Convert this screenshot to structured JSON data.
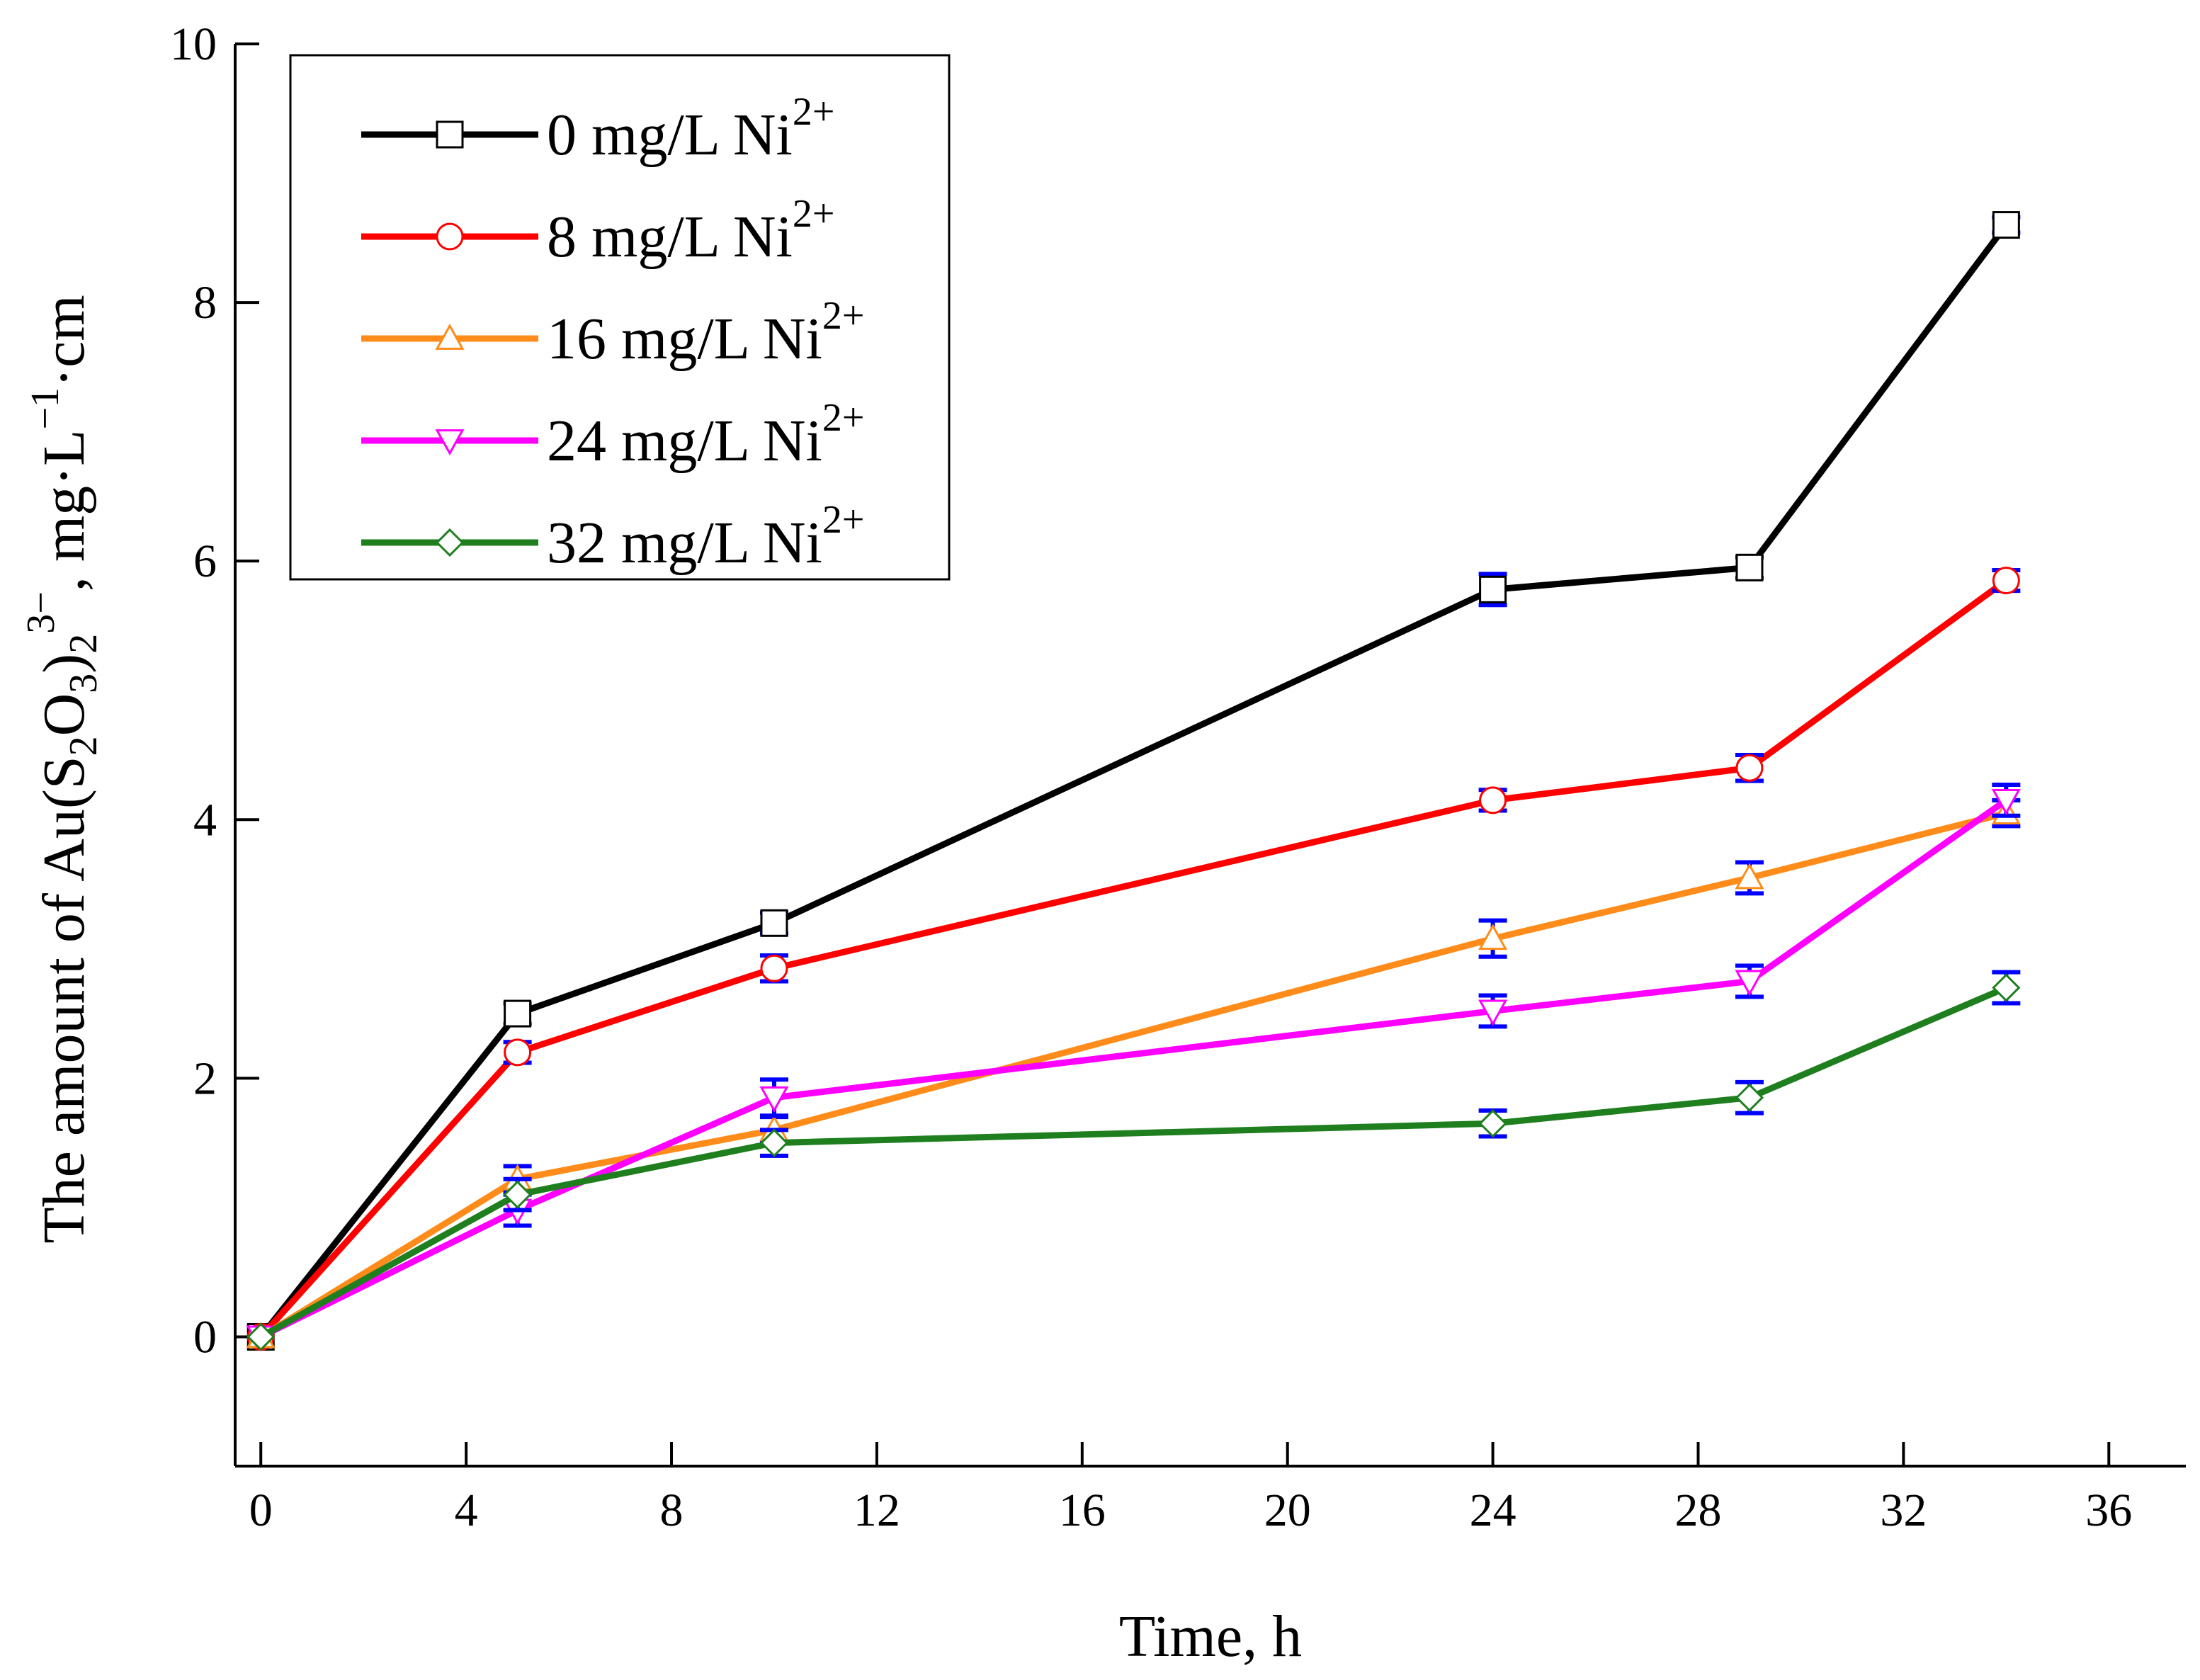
{
  "chart_data": {
    "type": "line",
    "title": "",
    "xlabel": "Time, h",
    "ylabel": {
      "main": "The amount of Au(S",
      "sub1": "2",
      "mid1": "O",
      "sub2": "3",
      "mid2": ")",
      "sub3": "2",
      "sup1": "3−",
      "mid3": ", mg·L",
      "sup2": "−1",
      "tail": "·cm"
    },
    "xlim": [
      -0.5,
      37.5
    ],
    "ylim": [
      -1,
      10
    ],
    "xticks": [
      0,
      4,
      8,
      12,
      16,
      20,
      24,
      28,
      32,
      36
    ],
    "xtick_labels": [
      "0",
      "4",
      "8",
      "12",
      "16",
      "20",
      "24",
      "28",
      "32",
      "36"
    ],
    "yticks": [
      0,
      2,
      4,
      6,
      8,
      10
    ],
    "ytick_labels": [
      "0",
      "2",
      "4",
      "6",
      "8",
      "10"
    ],
    "grid": false,
    "legend_position": "top-left",
    "x": [
      0,
      5,
      10,
      24,
      29,
      34
    ],
    "series": [
      {
        "name": "0 mg/L Ni",
        "sup": "2+",
        "color": "#000000",
        "marker": "square",
        "values": [
          0,
          2.5,
          3.2,
          5.78,
          5.95,
          8.6
        ],
        "errors": [
          0,
          0.08,
          0.08,
          0.12,
          0.08,
          0.06
        ]
      },
      {
        "name": "8 mg/L Ni",
        "sup": "2+",
        "color": "#ff0000",
        "marker": "circle",
        "values": [
          0,
          2.2,
          2.85,
          4.15,
          4.4,
          5.85
        ],
        "errors": [
          0,
          0.08,
          0.1,
          0.08,
          0.1,
          0.08
        ]
      },
      {
        "name": "16 mg/L Ni",
        "sup": "2+",
        "color": "#ff8c1a",
        "marker": "triangle-up",
        "values": [
          0,
          1.22,
          1.6,
          3.08,
          3.55,
          4.05
        ],
        "errors": [
          0,
          0.1,
          0.1,
          0.14,
          0.12,
          0.1
        ]
      },
      {
        "name": "24 mg/L Ni",
        "sup": "2+",
        "color": "#ff00ff",
        "marker": "triangle-down",
        "values": [
          0,
          0.98,
          1.85,
          2.52,
          2.75,
          4.15
        ],
        "errors": [
          0,
          0.12,
          0.14,
          0.12,
          0.12,
          0.12
        ]
      },
      {
        "name": "32 mg/L Ni",
        "sup": "2+",
        "color": "#1f7f1f",
        "marker": "diamond",
        "values": [
          0,
          1.1,
          1.5,
          1.65,
          1.85,
          2.7
        ],
        "errors": [
          0,
          0.12,
          0.1,
          0.1,
          0.12,
          0.12
        ]
      }
    ],
    "errorbar_color": "#0000ff"
  }
}
